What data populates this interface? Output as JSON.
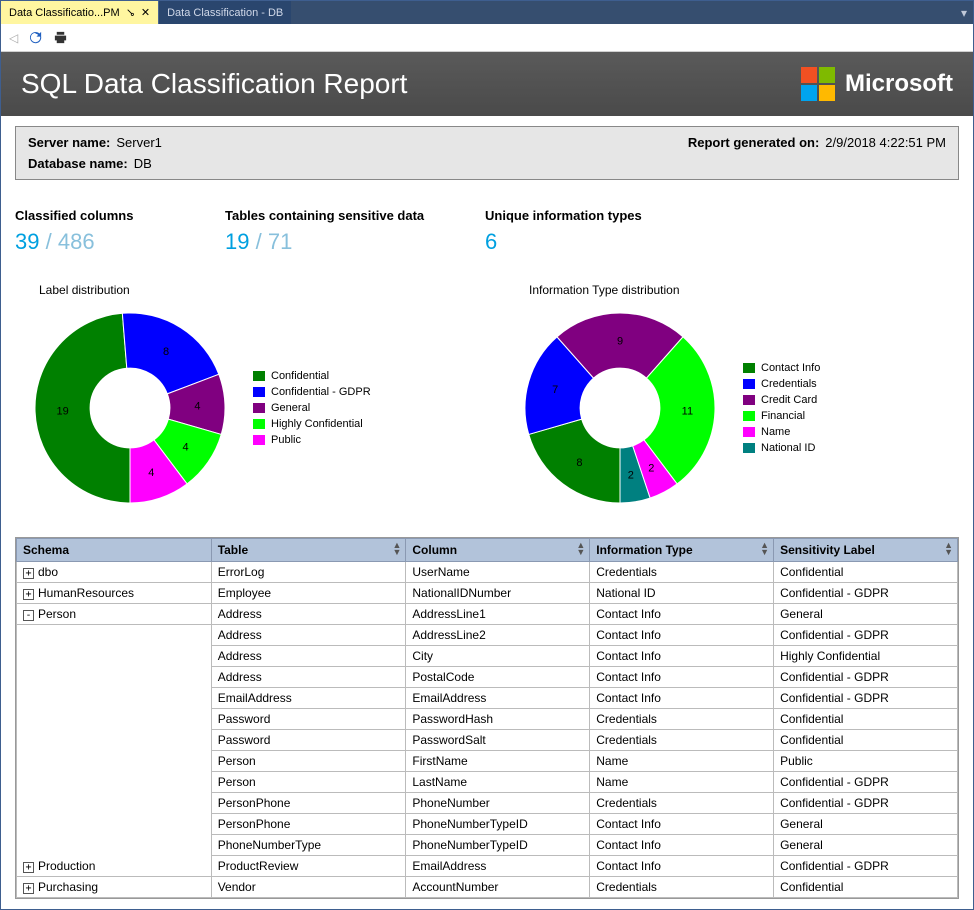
{
  "tabs": {
    "active": "Data Classificatio...PM",
    "inactive": "Data Classification - DB"
  },
  "banner": {
    "title": "SQL Data Classification Report",
    "brand": "Microsoft"
  },
  "ms_logo_colors": [
    "#f25022",
    "#7fba00",
    "#00a4ef",
    "#ffb900"
  ],
  "info": {
    "server_label": "Server name:",
    "server_value": "Server1",
    "db_label": "Database name:",
    "db_value": "DB",
    "gen_label": "Report generated on:",
    "gen_value": "2/9/2018 4:22:51 PM"
  },
  "stats": {
    "classified_label": "Classified columns",
    "classified_num": "39",
    "classified_denom": "486",
    "tables_label": "Tables containing sensitive data",
    "tables_num": "19",
    "tables_denom": "71",
    "types_label": "Unique information types",
    "types_num": "6"
  },
  "chart1": {
    "title": "Label distribution",
    "slices": [
      {
        "label": "Confidential",
        "value": 19,
        "color": "#008000"
      },
      {
        "label": "Confidential - GDPR",
        "value": 8,
        "color": "#0000ff"
      },
      {
        "label": "General",
        "value": 4,
        "color": "#800080"
      },
      {
        "label": "Highly Confidential",
        "value": 4,
        "color": "#00ff00"
      },
      {
        "label": "Public",
        "value": 4,
        "color": "#ff00ff"
      }
    ],
    "inner_ratio": 0.42
  },
  "chart2": {
    "title": "Information Type distribution",
    "slices": [
      {
        "label": "Contact Info",
        "value": 8,
        "color": "#008000"
      },
      {
        "label": "Credentials",
        "value": 7,
        "color": "#0000ff"
      },
      {
        "label": "Credit Card",
        "value": 9,
        "color": "#800080"
      },
      {
        "label": "Financial",
        "value": 11,
        "color": "#00ff00"
      },
      {
        "label": "Name",
        "value": 2,
        "color": "#ff00ff"
      },
      {
        "label": "National ID",
        "value": 2,
        "color": "#008080"
      }
    ],
    "inner_ratio": 0.42
  },
  "table": {
    "headers": [
      "Schema",
      "Table",
      "Column",
      "Information Type",
      "Sensitivity Label"
    ],
    "col_widths": [
      "180px",
      "180px",
      "170px",
      "170px",
      "170px"
    ],
    "rows": [
      {
        "schema": "dbo",
        "exp": "+",
        "table": "ErrorLog",
        "column": "UserName",
        "info": "Credentials",
        "sens": "Confidential"
      },
      {
        "schema": "HumanResources",
        "exp": "+",
        "table": "Employee",
        "column": "NationalIDNumber",
        "info": "National ID",
        "sens": "Confidential - GDPR"
      },
      {
        "schema": "Person",
        "exp": "-",
        "table": "Address",
        "column": "AddressLine1",
        "info": "Contact Info",
        "sens": "General"
      },
      {
        "schema": "",
        "exp": "",
        "table": "Address",
        "column": "AddressLine2",
        "info": "Contact Info",
        "sens": "Confidential - GDPR"
      },
      {
        "schema": "",
        "exp": "",
        "table": "Address",
        "column": "City",
        "info": "Contact Info",
        "sens": "Highly Confidential"
      },
      {
        "schema": "",
        "exp": "",
        "table": "Address",
        "column": "PostalCode",
        "info": "Contact Info",
        "sens": "Confidential - GDPR"
      },
      {
        "schema": "",
        "exp": "",
        "table": "EmailAddress",
        "column": "EmailAddress",
        "info": "Contact Info",
        "sens": "Confidential - GDPR"
      },
      {
        "schema": "",
        "exp": "",
        "table": "Password",
        "column": "PasswordHash",
        "info": "Credentials",
        "sens": "Confidential"
      },
      {
        "schema": "",
        "exp": "",
        "table": "Password",
        "column": "PasswordSalt",
        "info": "Credentials",
        "sens": "Confidential"
      },
      {
        "schema": "",
        "exp": "",
        "table": "Person",
        "column": "FirstName",
        "info": "Name",
        "sens": "Public"
      },
      {
        "schema": "",
        "exp": "",
        "table": "Person",
        "column": "LastName",
        "info": "Name",
        "sens": "Confidential - GDPR"
      },
      {
        "schema": "",
        "exp": "",
        "table": "PersonPhone",
        "column": "PhoneNumber",
        "info": "Credentials",
        "sens": "Confidential - GDPR"
      },
      {
        "schema": "",
        "exp": "",
        "table": "PersonPhone",
        "column": "PhoneNumberTypeID",
        "info": "Contact Info",
        "sens": "General"
      },
      {
        "schema": "",
        "exp": "",
        "table": "PhoneNumberType",
        "column": "PhoneNumberTypeID",
        "info": "Contact Info",
        "sens": "General"
      },
      {
        "schema": "Production",
        "exp": "+",
        "table": "ProductReview",
        "column": "EmailAddress",
        "info": "Contact Info",
        "sens": "Confidential - GDPR"
      },
      {
        "schema": "Purchasing",
        "exp": "+",
        "table": "Vendor",
        "column": "AccountNumber",
        "info": "Credentials",
        "sens": "Confidential"
      }
    ]
  }
}
